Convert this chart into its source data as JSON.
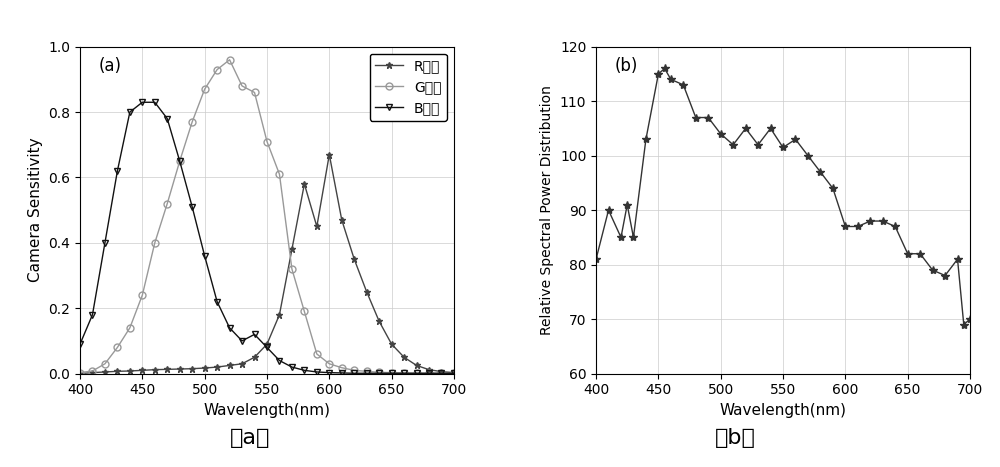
{
  "panel_a": {
    "label": "(a)",
    "xlabel": "Wavelength(nm)",
    "ylabel": "Camera Sensitivity",
    "xlim": [
      400,
      700
    ],
    "ylim": [
      0,
      1.0
    ],
    "xticks": [
      400,
      450,
      500,
      550,
      600,
      650,
      700
    ],
    "yticks": [
      0,
      0.2,
      0.4,
      0.6,
      0.8,
      1.0
    ],
    "R_x": [
      400,
      410,
      420,
      430,
      440,
      450,
      460,
      470,
      480,
      490,
      500,
      510,
      520,
      530,
      540,
      550,
      560,
      570,
      580,
      590,
      600,
      610,
      620,
      630,
      640,
      650,
      660,
      670,
      680,
      690,
      700
    ],
    "R_y": [
      0.0,
      0.003,
      0.005,
      0.007,
      0.008,
      0.01,
      0.012,
      0.013,
      0.014,
      0.015,
      0.017,
      0.02,
      0.025,
      0.03,
      0.05,
      0.09,
      0.18,
      0.38,
      0.58,
      0.45,
      0.67,
      0.47,
      0.35,
      0.25,
      0.16,
      0.09,
      0.05,
      0.025,
      0.012,
      0.006,
      0.003
    ],
    "G_x": [
      400,
      410,
      420,
      430,
      440,
      450,
      460,
      470,
      480,
      490,
      500,
      510,
      520,
      530,
      540,
      550,
      560,
      570,
      580,
      590,
      600,
      610,
      620,
      630,
      640,
      650,
      660,
      670,
      680,
      690,
      700
    ],
    "G_y": [
      0.003,
      0.008,
      0.03,
      0.08,
      0.14,
      0.24,
      0.4,
      0.52,
      0.65,
      0.77,
      0.87,
      0.93,
      0.96,
      0.88,
      0.86,
      0.71,
      0.61,
      0.32,
      0.19,
      0.06,
      0.03,
      0.018,
      0.01,
      0.007,
      0.004,
      0.003,
      0.002,
      0.001,
      0.001,
      0.001,
      0.001
    ],
    "B_x": [
      400,
      410,
      420,
      430,
      440,
      450,
      460,
      470,
      480,
      490,
      500,
      510,
      520,
      530,
      540,
      550,
      560,
      570,
      580,
      590,
      600,
      610,
      620,
      630,
      640,
      650,
      660,
      670,
      680,
      690,
      700
    ],
    "B_y": [
      0.09,
      0.18,
      0.4,
      0.62,
      0.8,
      0.83,
      0.83,
      0.78,
      0.65,
      0.51,
      0.36,
      0.22,
      0.14,
      0.1,
      0.12,
      0.08,
      0.04,
      0.02,
      0.01,
      0.005,
      0.003,
      0.002,
      0.001,
      0.001,
      0.001,
      0.001,
      0.001,
      0.001,
      0.001,
      0.001,
      0.001
    ],
    "R_color": "#444444",
    "G_color": "#999999",
    "B_color": "#111111",
    "R_label": "R通道",
    "G_label": "G通道",
    "B_label": "B通道",
    "caption_latin": "(a)"
  },
  "panel_b": {
    "label": "(b)",
    "xlabel": "Wavelength(nm)",
    "ylabel": "Relative Spectral Power Distribution",
    "xlim": [
      400,
      700
    ],
    "ylim": [
      60,
      120
    ],
    "xticks": [
      400,
      450,
      500,
      550,
      600,
      650,
      700
    ],
    "yticks": [
      60,
      70,
      80,
      90,
      100,
      110,
      120
    ],
    "x": [
      400,
      410,
      420,
      425,
      430,
      440,
      450,
      455,
      460,
      470,
      480,
      490,
      500,
      510,
      520,
      530,
      540,
      550,
      560,
      570,
      580,
      590,
      600,
      610,
      620,
      630,
      640,
      650,
      660,
      670,
      680,
      690,
      695,
      700
    ],
    "y": [
      81,
      90,
      85,
      91,
      85,
      103,
      115,
      116,
      114,
      113,
      107,
      107,
      104,
      102,
      105,
      102,
      105,
      101.5,
      103,
      100,
      97,
      94,
      87,
      87,
      88,
      88,
      87,
      82,
      82,
      79,
      78,
      81,
      69,
      70
    ],
    "color": "#333333",
    "caption_latin": "(b)"
  }
}
